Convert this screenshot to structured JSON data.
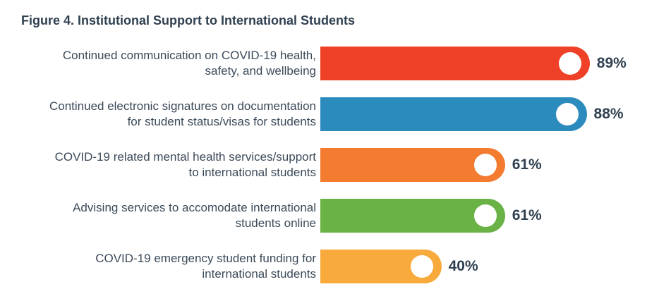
{
  "chart_data": {
    "type": "bar",
    "orientation": "horizontal",
    "title": "Figure 4. Institutional Support to International Students",
    "categories": [
      [
        "Continued communication on COVID-19 health,",
        "safety, and wellbeing"
      ],
      [
        "Continued electronic signatures on documentation",
        "for student status/visas for students"
      ],
      [
        "COVID-19 related mental health services/support",
        "to international students"
      ],
      [
        "Advising services to accomodate international",
        "students online"
      ],
      [
        "COVID-19 emergency student funding for",
        "international students"
      ]
    ],
    "values": [
      89,
      88,
      61,
      61,
      40
    ],
    "value_labels": [
      "89%",
      "88%",
      "61%",
      "61%",
      "40%"
    ],
    "colors": [
      "#ee4127",
      "#2b8bbd",
      "#f47c30",
      "#6ab246",
      "#f9aa3c"
    ],
    "xlim": [
      0,
      100
    ],
    "grid": false,
    "legend": "none"
  }
}
